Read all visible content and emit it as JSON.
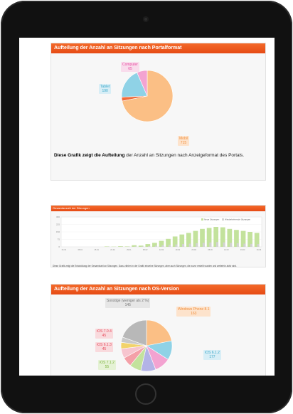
{
  "panel1": {
    "title": "Aufteilung der Anzahl an Sitzungen nach Portalformat",
    "caption_bold": "Diese Grafik zeigt die Aufteilung",
    "caption_rest": " der Anzahl an Sitzungen nach Anzeigeformat des Portals.",
    "labels": [
      {
        "name": "Computer",
        "value": "65",
        "color": "#e64aa0",
        "bg": "#f9dcec"
      },
      {
        "name": "Tablet",
        "value": "190",
        "color": "#3aa7c9",
        "bg": "#d8eef6"
      },
      {
        "name": "Mobil",
        "value": "715",
        "color": "#f08f3c",
        "bg": "#fde3cc"
      }
    ],
    "colors": {
      "mobil": "#fbbf85",
      "tablet": "#8fd2e6",
      "computer": "#f3a3d1",
      "extra": "#f06b3a"
    }
  },
  "panel2": {
    "title": "Gesamtanzahl der Sitzungen",
    "legend_new": "Neue Sitzungen",
    "legend_returning": "Wiederkehrende Sitzungen",
    "caption": "Diese Grafik zeigt die Entwicklung der Gesamtzahl an Sitzungen. Dazu zählen in der Grafik einzelne Sitzungen, aber auch Sitzungen, die zuvor erstellt wurden und weiterhin aktiv sind.",
    "y_ticks": [
      "300",
      "225",
      "150",
      "75",
      "0"
    ],
    "x_ticks": [
      "01.01",
      "08.01",
      "15.01",
      "22.01",
      "29.01",
      "05.02",
      "12.02",
      "19.02",
      "26.02",
      "05.03",
      "12.03",
      "19.03",
      "26.03"
    ],
    "bars_new": [
      0,
      0,
      0,
      0,
      0,
      0,
      2,
      1,
      3,
      2,
      8,
      6,
      14,
      20,
      30,
      40,
      52,
      62,
      70,
      80,
      90,
      95,
      100,
      98,
      90,
      85,
      80,
      75,
      70
    ],
    "bars_returning": [
      0,
      0,
      0,
      0,
      0,
      0,
      1,
      0,
      1,
      1,
      2,
      2,
      4,
      6,
      8,
      10,
      12,
      14,
      16,
      18,
      20,
      22,
      24,
      22,
      20,
      18,
      16,
      15,
      14
    ],
    "colors": {
      "new": "#c3e29c",
      "returning": "#d3d3d3"
    }
  },
  "panel3": {
    "title": "Aufteilung der Anzahl an Sitzungen nach OS-Version",
    "labels": [
      {
        "name": "Sonstige (weniger als 2 %)",
        "value": "145",
        "color": "#777777",
        "bg": "#e6e6e6"
      },
      {
        "name": "Windows Phone 8.1",
        "value": "163",
        "color": "#f08f3c",
        "bg": "#fde3cc"
      },
      {
        "name": "iOS 7.0.4",
        "value": "45",
        "color": "#e64a5a",
        "bg": "#f9dadd"
      },
      {
        "name": "iOS 6.1.3",
        "value": "45",
        "color": "#e64a5a",
        "bg": "#f9dadd"
      },
      {
        "name": "iOS 6.1.2",
        "value": "177",
        "color": "#3aa7c9",
        "bg": "#d8eef6"
      },
      {
        "name": "iOS 7.1.2",
        "value": "55",
        "color": "#7bb23c",
        "bg": "#e5f2d5"
      }
    ],
    "slices": [
      {
        "value": 163,
        "color": "#fbbf85"
      },
      {
        "value": 90,
        "color": "#8fd2e6"
      },
      {
        "value": 75,
        "color": "#f3a3d1"
      },
      {
        "value": 70,
        "color": "#b3b3e6"
      },
      {
        "value": 55,
        "color": "#c3e29c"
      },
      {
        "value": 45,
        "color": "#f4a0a8"
      },
      {
        "value": 45,
        "color": "#f7c5cf"
      },
      {
        "value": 30,
        "color": "#f2d36b"
      },
      {
        "value": 25,
        "color": "#c9c9c9"
      },
      {
        "value": 145,
        "color": "#b8b8b8"
      }
    ]
  }
}
